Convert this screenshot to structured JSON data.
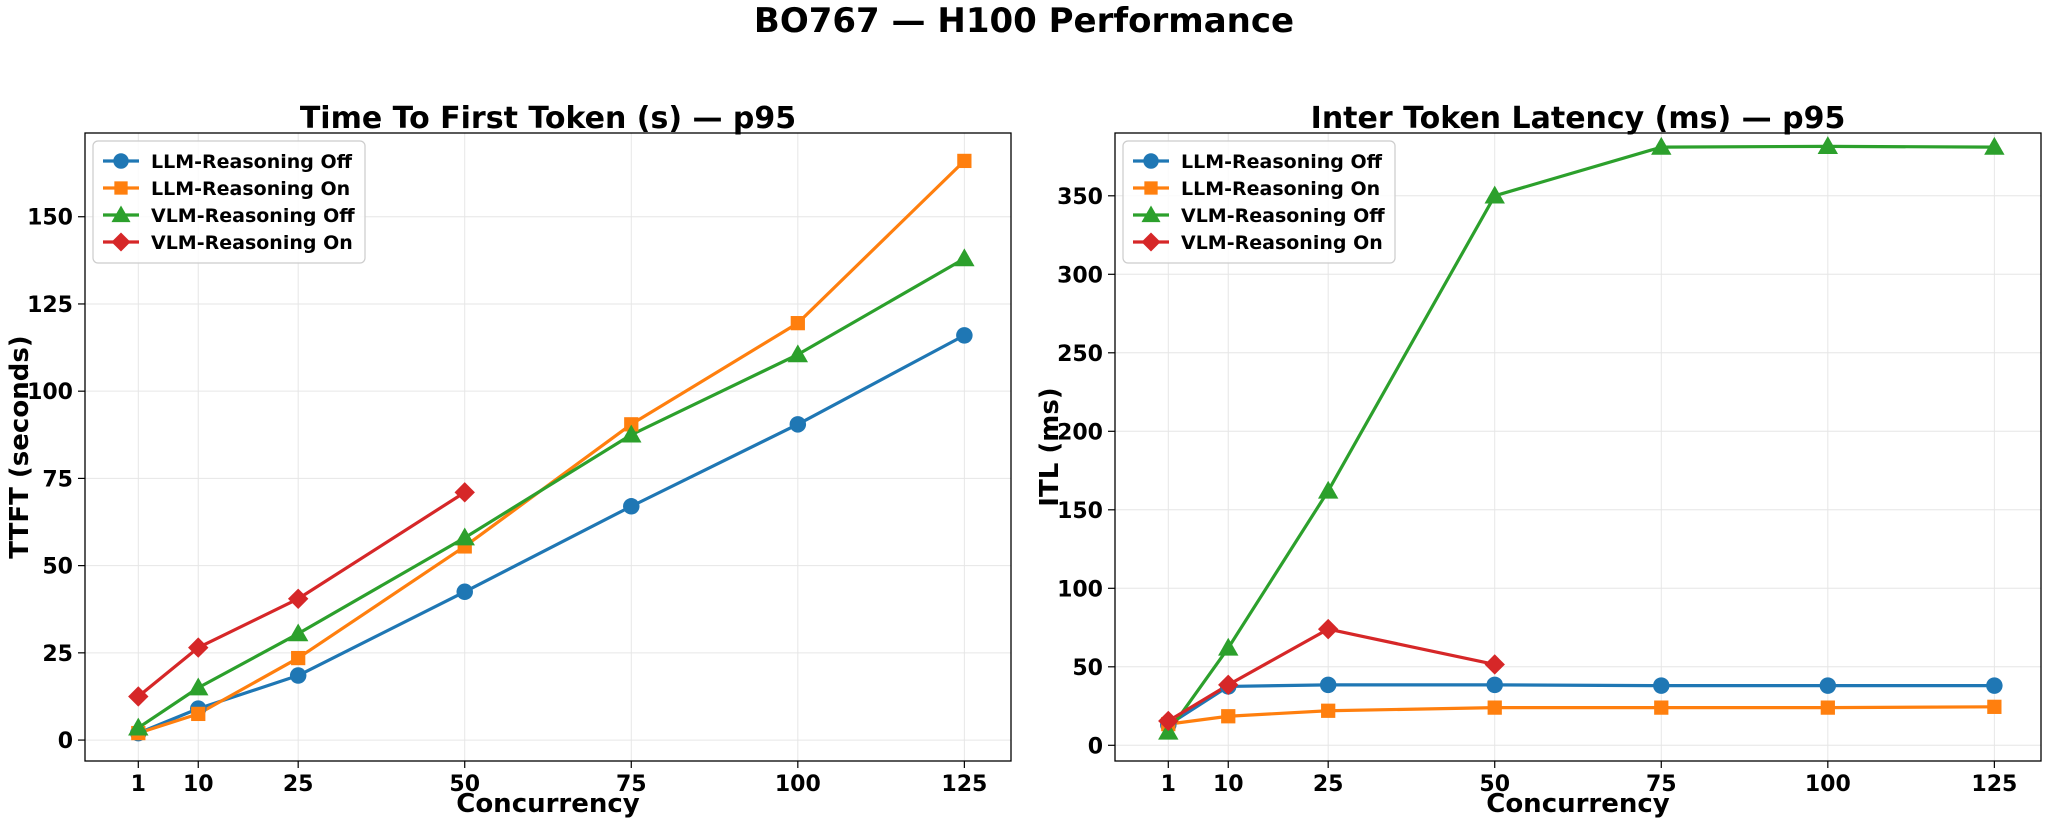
{
  "figure": {
    "title": "BO767 — H100 Performance"
  },
  "colors": {
    "LLM-Reasoning Off": "#1f77b4",
    "LLM-Reasoning On": "#ff7f0e",
    "VLM-Reasoning Off": "#2ca02c",
    "VLM-Reasoning On": "#d62728"
  },
  "markers": {
    "LLM-Reasoning Off": "circle",
    "LLM-Reasoning On": "square",
    "VLM-Reasoning Off": "triangle",
    "VLM-Reasoning On": "diamond"
  },
  "chart_data": [
    {
      "type": "line",
      "title": "Time To First Token (s) — p95",
      "xlabel": "Concurrency",
      "ylabel": "TTFT (seconds)",
      "xticks": [
        1,
        10,
        25,
        50,
        75,
        100,
        125
      ],
      "yticks": [
        0,
        25,
        50,
        75,
        100,
        125,
        150
      ],
      "xlim": [
        -7,
        132
      ],
      "ylim": [
        -6,
        174
      ],
      "grid": true,
      "legend": "top-left",
      "series": [
        {
          "name": "LLM-Reasoning Off",
          "x": [
            1,
            10,
            25,
            50,
            75,
            100,
            125
          ],
          "y": [
            2,
            9,
            18.5,
            42.5,
            67,
            90.5,
            116
          ]
        },
        {
          "name": "LLM-Reasoning On",
          "x": [
            1,
            10,
            25,
            50,
            75,
            100,
            125
          ],
          "y": [
            2,
            7.5,
            23.5,
            55.5,
            90.5,
            119.5,
            166
          ]
        },
        {
          "name": "VLM-Reasoning Off",
          "x": [
            1,
            10,
            25,
            50,
            75,
            100,
            125
          ],
          "y": [
            3.5,
            15,
            30.5,
            58,
            87.5,
            110.5,
            138
          ]
        },
        {
          "name": "VLM-Reasoning On",
          "x": [
            1,
            10,
            25,
            50
          ],
          "y": [
            12.5,
            26.5,
            40.5,
            71
          ]
        }
      ]
    },
    {
      "type": "line",
      "title": "Inter Token Latency (ms) — p95",
      "xlabel": "Concurrency",
      "ylabel": "ITL (ms)",
      "xticks": [
        1,
        10,
        25,
        50,
        75,
        100,
        125
      ],
      "yticks": [
        0,
        50,
        100,
        150,
        200,
        250,
        300,
        350
      ],
      "xlim": [
        -7,
        132
      ],
      "ylim": [
        -10,
        390
      ],
      "grid": true,
      "legend": "top-left",
      "series": [
        {
          "name": "LLM-Reasoning Off",
          "x": [
            1,
            10,
            25,
            50,
            75,
            100,
            125
          ],
          "y": [
            13,
            37.5,
            38.5,
            38.5,
            38,
            38,
            38
          ]
        },
        {
          "name": "LLM-Reasoning On",
          "x": [
            1,
            10,
            25,
            50,
            75,
            100,
            125
          ],
          "y": [
            13.5,
            18.5,
            22,
            24,
            24,
            24,
            24.5
          ]
        },
        {
          "name": "VLM-Reasoning Off",
          "x": [
            1,
            10,
            25,
            50,
            75,
            100,
            125
          ],
          "y": [
            8.5,
            62,
            162,
            350,
            381,
            381.5,
            381
          ]
        },
        {
          "name": "VLM-Reasoning On",
          "x": [
            1,
            10,
            25,
            50
          ],
          "y": [
            15.5,
            38.5,
            74,
            51.5
          ]
        }
      ]
    }
  ]
}
